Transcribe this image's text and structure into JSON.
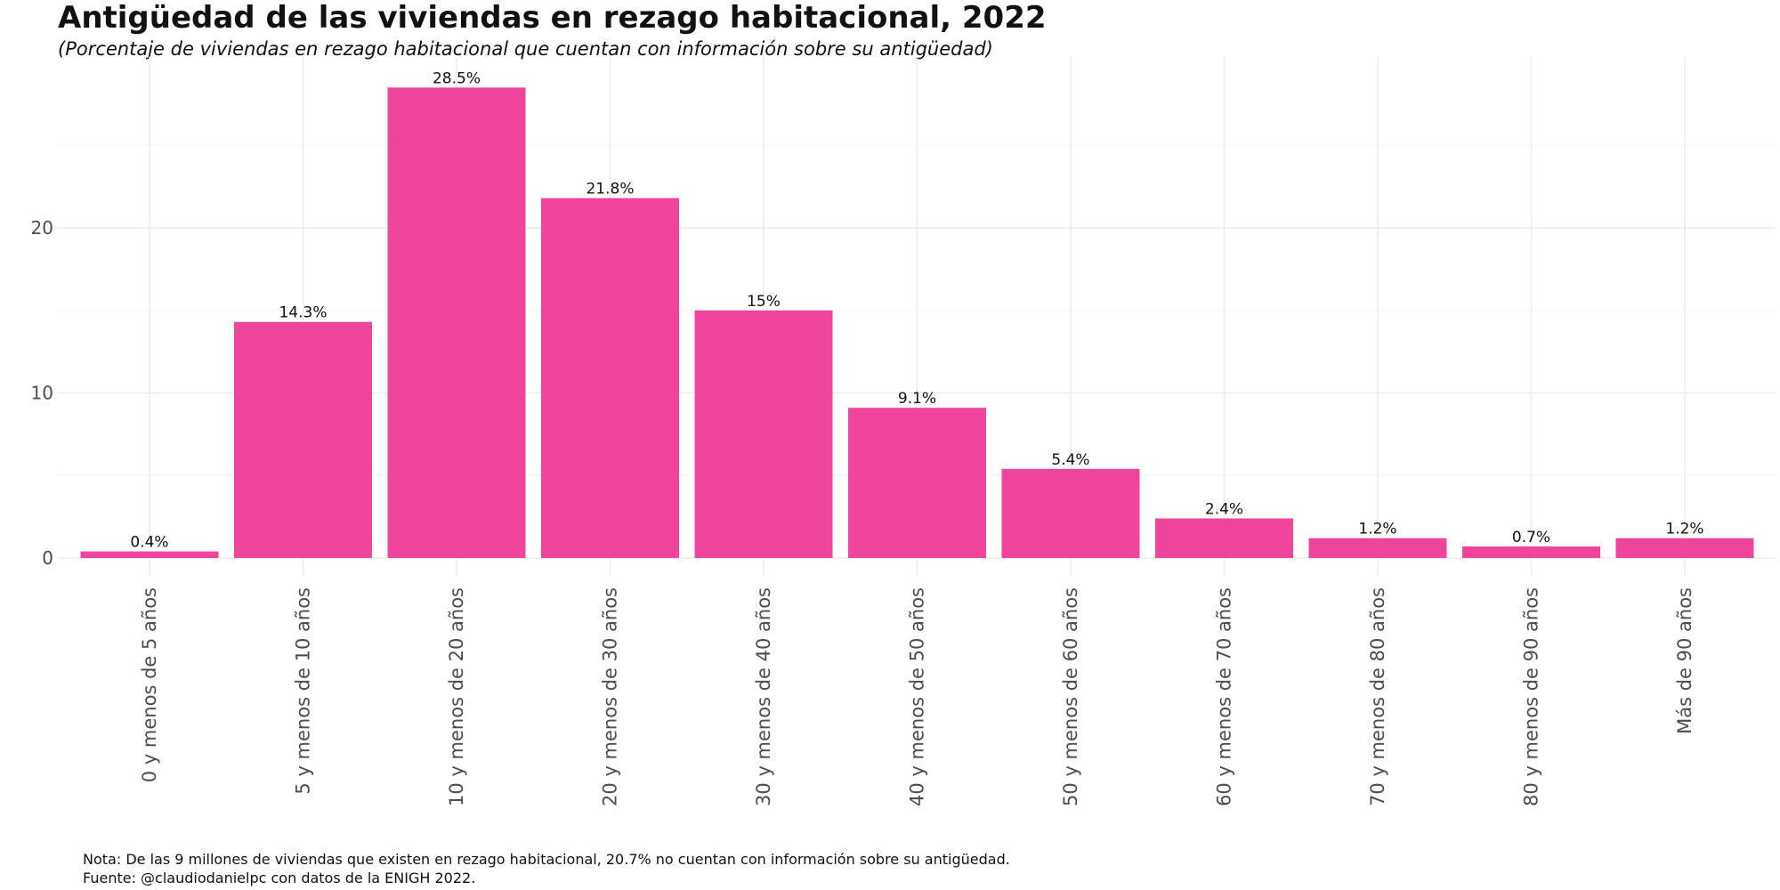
{
  "header": {
    "title": "Antigüedad de las viviendas en rezago habitacional, 2022",
    "subtitle": "(Porcentaje de viviendas en rezago habitacional que cuentan con información sobre su antigüedad)"
  },
  "footer": {
    "note": "Nota: De las 9 millones de viviendas que existen en rezago habitacional, 20.7% no cuentan con información sobre su antigüedad.",
    "source": "Fuente: @claudiodanielpc con datos de la ENIGH 2022."
  },
  "chart_data": {
    "type": "bar",
    "title": "Antigüedad de las viviendas en rezago habitacional, 2022",
    "subtitle": "(Porcentaje de viviendas en rezago habitacional que cuentan con información sobre su antigüedad)",
    "xlabel": "",
    "ylabel": "",
    "categories": [
      "0 y menos de 5 años",
      "5 y menos de 10 años",
      "10 y menos de 20 años",
      "20 y menos de 30 años",
      "30 y menos de 40 años",
      "40 y menos de 50 años",
      "50 y menos de 60 años",
      "60 y menos de 70 años",
      "70 y menos de 80 años",
      "80 y menos de 90 años",
      "Más de 90 años"
    ],
    "values": [
      0.4,
      14.3,
      28.5,
      21.8,
      15,
      9.1,
      5.4,
      2.4,
      1.2,
      0.7,
      1.2
    ],
    "data_labels": [
      "0.4%",
      "14.3%",
      "28.5%",
      "21.8%",
      "15%",
      "9.1%",
      "5.4%",
      "2.4%",
      "1.2%",
      "0.7%",
      "1.2%"
    ],
    "yticks": [
      0,
      10,
      20
    ],
    "ylim": [
      0,
      30
    ],
    "grid": true,
    "legend": "none",
    "colors": {
      "bar": "#ef459c",
      "grid_major": "#ebebeb",
      "grid_minor": "#f4f4f4",
      "tick_text": "#4d4d4d"
    }
  }
}
